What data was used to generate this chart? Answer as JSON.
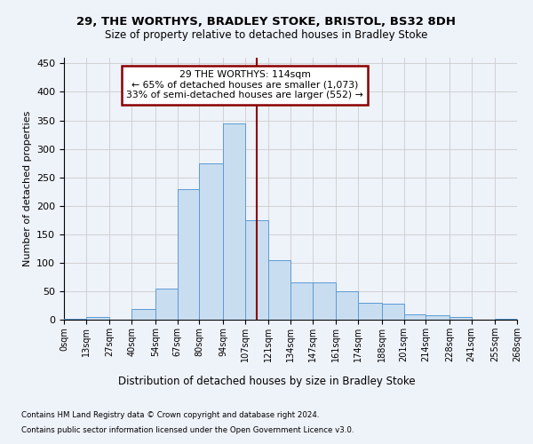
{
  "title": "29, THE WORTHYS, BRADLEY STOKE, BRISTOL, BS32 8DH",
  "subtitle": "Size of property relative to detached houses in Bradley Stoke",
  "xlabel": "Distribution of detached houses by size in Bradley Stoke",
  "ylabel": "Number of detached properties",
  "footnote1": "Contains HM Land Registry data © Crown copyright and database right 2024.",
  "footnote2": "Contains public sector information licensed under the Open Government Licence v3.0.",
  "annotation_line1": "29 THE WORTHYS: 114sqm",
  "annotation_line2": "← 65% of detached houses are smaller (1,073)",
  "annotation_line3": "33% of semi-detached houses are larger (552) →",
  "property_size": 114,
  "bin_edges": [
    0,
    13,
    27,
    40,
    54,
    67,
    80,
    94,
    107,
    121,
    134,
    147,
    161,
    174,
    188,
    201,
    214,
    228,
    241,
    255,
    268
  ],
  "bar_heights": [
    2,
    5,
    0,
    18,
    55,
    230,
    275,
    345,
    175,
    105,
    65,
    65,
    50,
    30,
    28,
    10,
    8,
    5,
    0,
    2
  ],
  "bar_color": "#c9ddf0",
  "bar_edge_color": "#5b9bd5",
  "vline_color": "#8b0000",
  "annotation_box_facecolor": "#ffffff",
  "annotation_box_edgecolor": "#8b0000",
  "grid_color": "#cccccc",
  "background_color": "#eef2f9",
  "ylim": [
    0,
    460
  ],
  "yticks": [
    0,
    50,
    100,
    150,
    200,
    250,
    300,
    350,
    400,
    450
  ]
}
